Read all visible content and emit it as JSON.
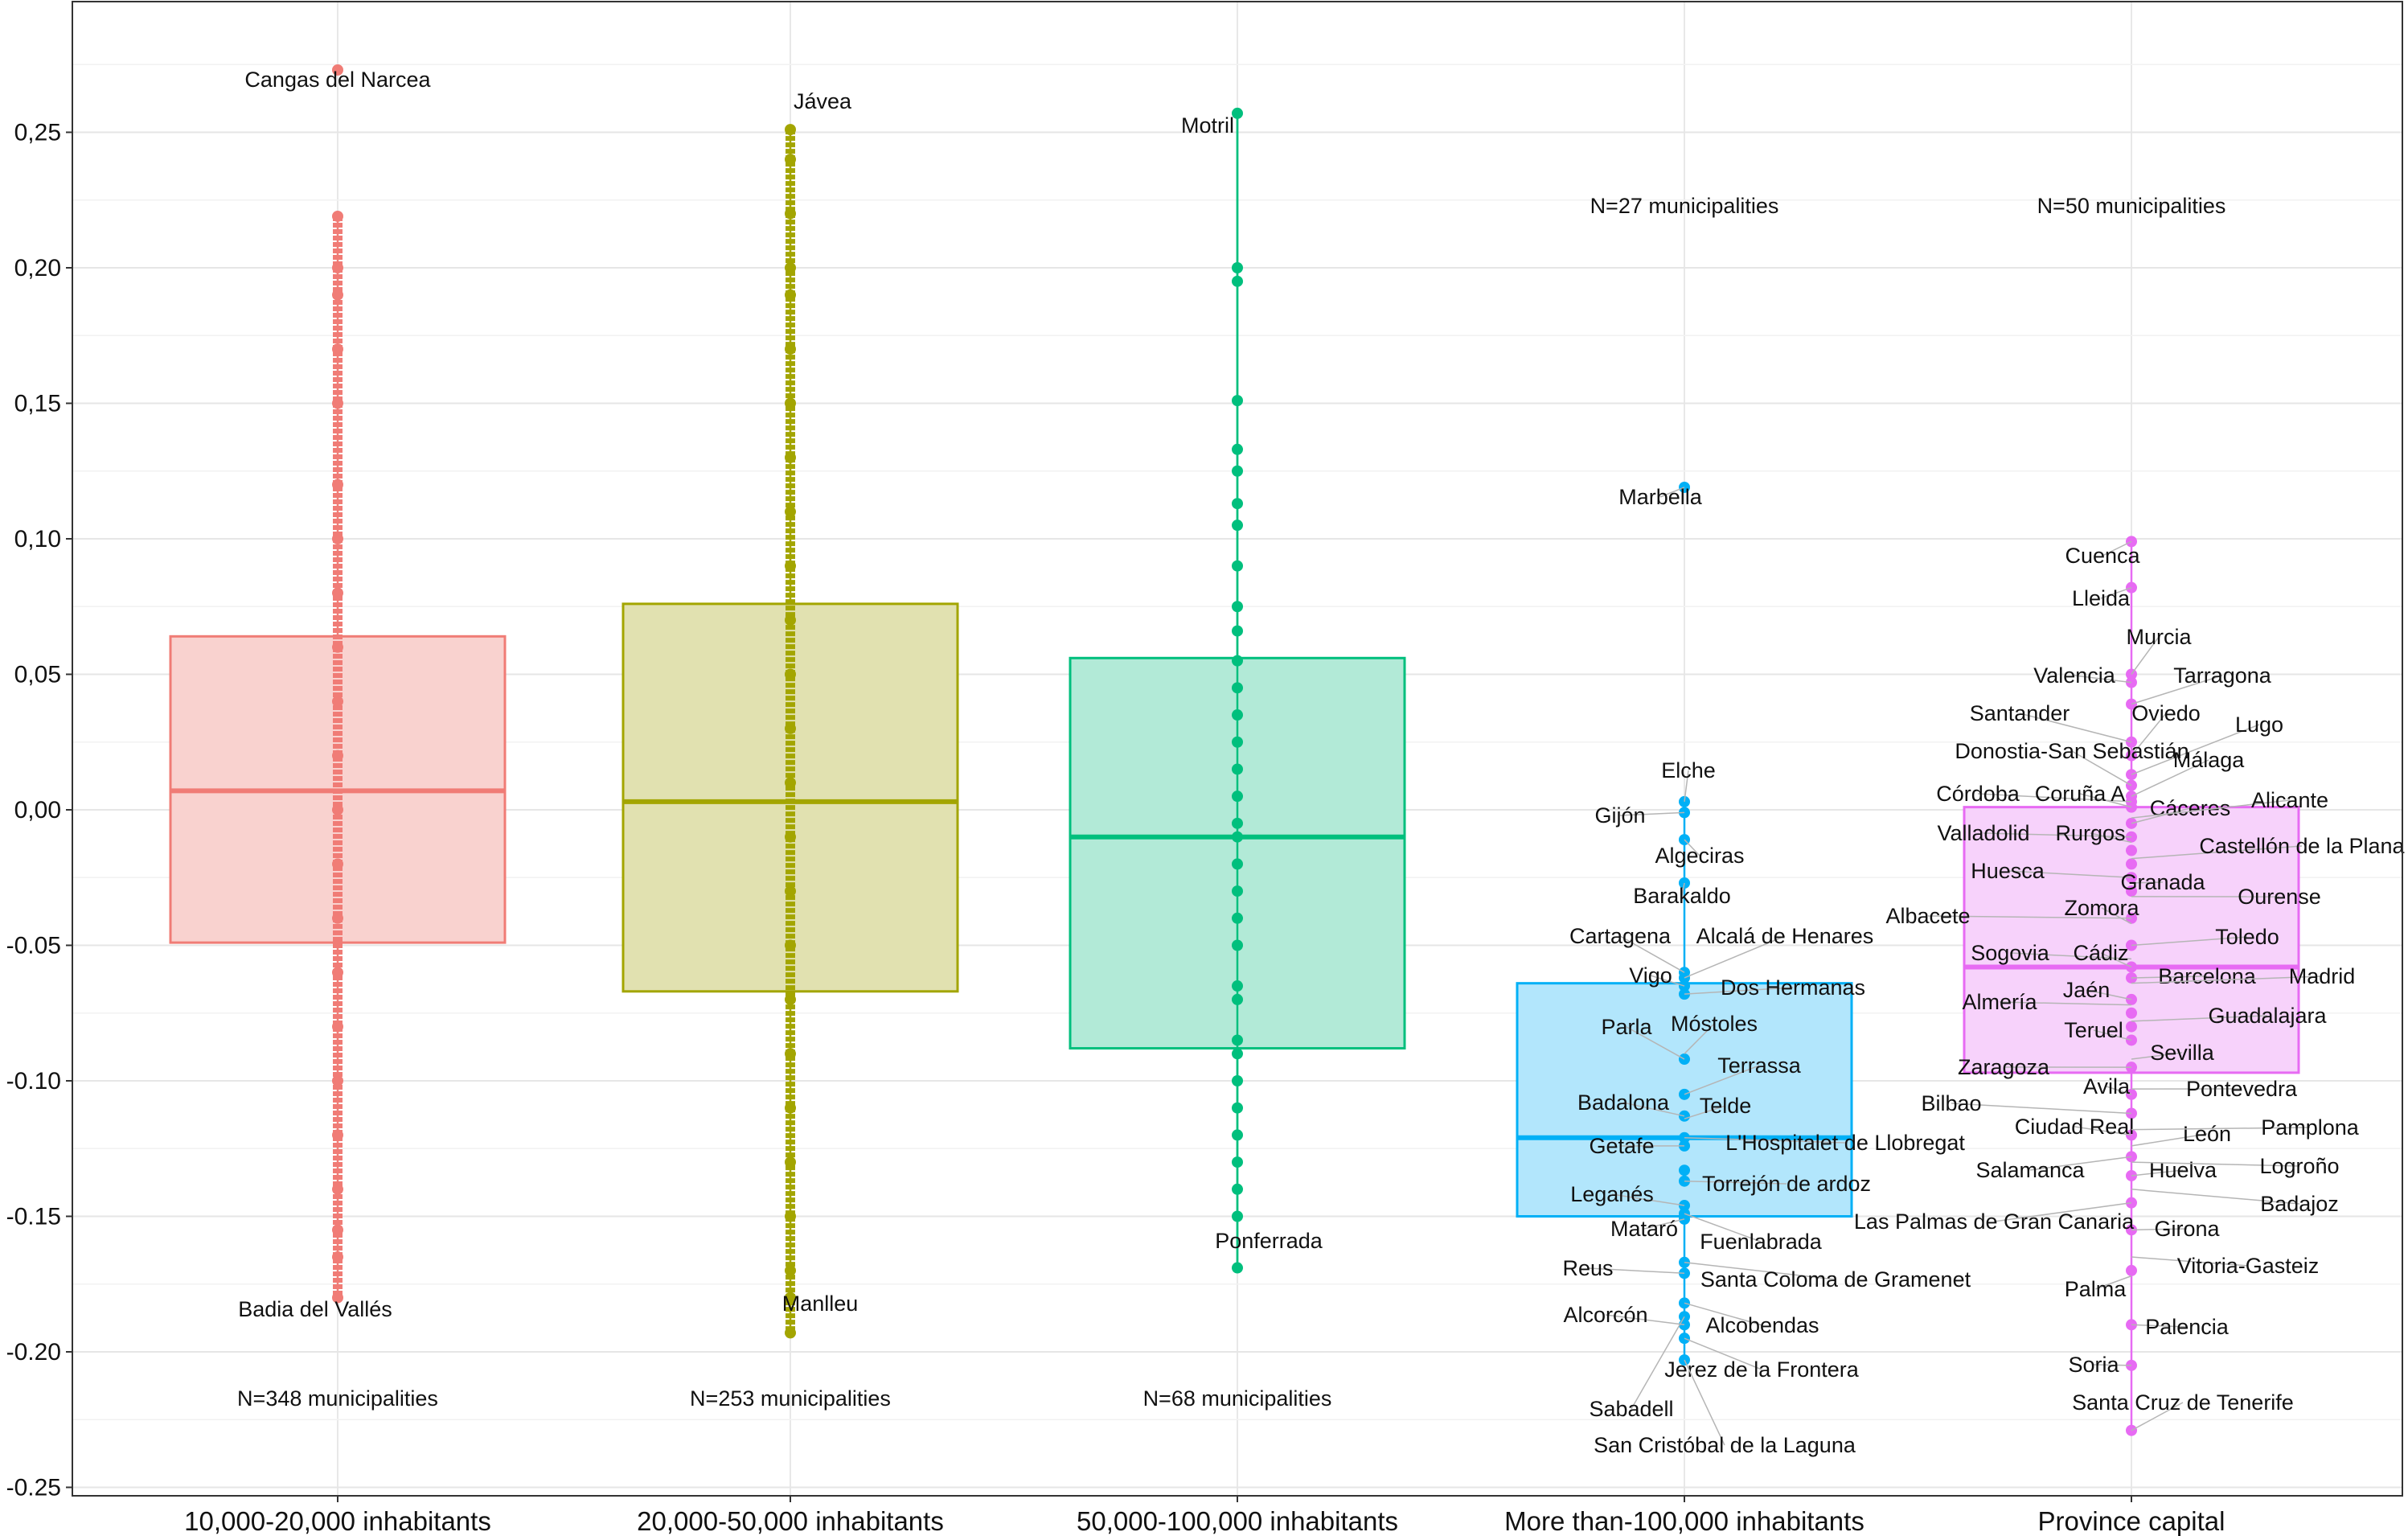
{
  "chart_data": {
    "type": "box",
    "title": "",
    "xlabel": "",
    "ylabel": "",
    "ylim": [
      -0.255,
      0.285
    ],
    "y_ticks": [
      "0,25",
      "0,20",
      "0,15",
      "0,10",
      "0,05",
      "0,00",
      "-0.05",
      "-0.10",
      "-0.15",
      "-0.20",
      "-0.25"
    ],
    "y_tick_values": [
      0.25,
      0.2,
      0.15,
      0.1,
      0.05,
      0.0,
      -0.05,
      -0.1,
      -0.15,
      -0.2,
      -0.25
    ],
    "grid": true,
    "legend": "none",
    "categories": [
      "10,000-20,000 inhabitants",
      "20,000-50,000 inhabitants",
      "50,000-100,000 inhabitants",
      "More than-100,000 inhabitants",
      "Province capital"
    ],
    "series": [
      {
        "color": "#f07c76",
        "fill": "#f9d2cf",
        "box": {
          "q1": -0.049,
          "median": 0.007,
          "q3": 0.064
        },
        "whisker": {
          "min": -0.18,
          "max": 0.219
        },
        "outliers": [
          0.273
        ],
        "points": [
          0.273,
          0.219,
          0.2,
          0.19,
          0.17,
          0.15,
          0.12,
          0.1,
          0.08,
          0.06,
          0.04,
          0.02,
          0.0,
          -0.02,
          -0.04,
          -0.06,
          -0.08,
          -0.1,
          -0.12,
          -0.14,
          -0.155,
          -0.165,
          -0.18
        ],
        "annotation": "N=348 municipalities",
        "labels": [
          {
            "text": "Cangas del Narcea",
            "value": 0.273
          },
          {
            "text": "Badia del Vallés",
            "value": -0.18
          }
        ]
      },
      {
        "color": "#a3a500",
        "fill": "#e1e1b0",
        "box": {
          "q1": -0.067,
          "median": 0.003,
          "q3": 0.076
        },
        "whisker": {
          "min": -0.193,
          "max": 0.251
        },
        "outliers": [],
        "points": [
          0.251,
          0.24,
          0.22,
          0.2,
          0.19,
          0.17,
          0.15,
          0.13,
          0.11,
          0.09,
          0.07,
          0.05,
          0.03,
          0.01,
          -0.01,
          -0.03,
          -0.05,
          -0.07,
          -0.09,
          -0.11,
          -0.13,
          -0.15,
          -0.17,
          -0.18,
          -0.193
        ],
        "annotation": "N=253 municipalities",
        "labels": [
          {
            "text": "Jávea",
            "value": 0.251
          },
          {
            "text": "Manlleu",
            "value": -0.193
          }
        ]
      },
      {
        "color": "#00bf7d",
        "fill": "#b2ead7",
        "box": {
          "q1": -0.088,
          "median": -0.01,
          "q3": 0.056
        },
        "whisker": {
          "min": -0.169,
          "max": 0.257
        },
        "outliers": [],
        "points": [
          0.257,
          0.2,
          0.195,
          0.151,
          0.133,
          0.125,
          0.113,
          0.105,
          0.09,
          0.075,
          0.066,
          0.055,
          0.045,
          0.035,
          0.025,
          0.015,
          0.005,
          -0.005,
          -0.01,
          -0.02,
          -0.03,
          -0.04,
          -0.05,
          -0.065,
          -0.07,
          -0.085,
          -0.09,
          -0.1,
          -0.11,
          -0.12,
          -0.13,
          -0.14,
          -0.15,
          -0.169
        ],
        "annotation": "N=68 municipalities",
        "labels": [
          {
            "text": "Motril",
            "value": 0.257
          },
          {
            "text": "Ponferrada",
            "value": -0.169
          }
        ]
      },
      {
        "color": "#00b0f6",
        "fill": "#b2e6fc",
        "box": {
          "q1": -0.15,
          "median": -0.121,
          "q3": -0.064
        },
        "whisker": {
          "min": -0.203,
          "max": 0.003
        },
        "outliers": [
          0.119
        ],
        "points": [
          0.119,
          0.003,
          -0.001,
          -0.011,
          -0.027,
          -0.06,
          -0.062,
          -0.065,
          -0.068,
          -0.092,
          -0.105,
          -0.113,
          -0.121,
          -0.124,
          -0.133,
          -0.137,
          -0.146,
          -0.149,
          -0.151,
          -0.167,
          -0.171,
          -0.182,
          -0.187,
          -0.19,
          -0.195,
          -0.203
        ],
        "annotation": "N=27 municipalities",
        "labels": [
          {
            "text": "Marbella",
            "value": 0.119
          },
          {
            "text": "Elche",
            "value": 0.003
          },
          {
            "text": "Gijón",
            "value": -0.001
          },
          {
            "text": "Algeciras",
            "value": -0.011
          },
          {
            "text": "Barakaldo",
            "value": -0.027
          },
          {
            "text": "Cartagena",
            "value": -0.06
          },
          {
            "text": "Alcalá de Henares",
            "value": -0.062
          },
          {
            "text": "Vigo",
            "value": -0.065
          },
          {
            "text": "Dos Hermanas",
            "value": -0.068
          },
          {
            "text": "Parla",
            "value": -0.092
          },
          {
            "text": "Móstoles",
            "value": -0.09
          },
          {
            "text": "Terrassa",
            "value": -0.105
          },
          {
            "text": "Badalona",
            "value": -0.113
          },
          {
            "text": "Telde",
            "value": -0.114
          },
          {
            "text": "Getafe",
            "value": -0.124
          },
          {
            "text": "L'Hospitalet de Llobregat",
            "value": -0.121
          },
          {
            "text": "Torrejón de ardoz",
            "value": -0.137
          },
          {
            "text": "Leganés",
            "value": -0.146
          },
          {
            "text": "Mataró",
            "value": -0.151
          },
          {
            "text": "Fuenlabrada",
            "value": -0.149
          },
          {
            "text": "Reus",
            "value": -0.171
          },
          {
            "text": "Santa Coloma de Gramenet",
            "value": -0.167
          },
          {
            "text": "Alcorcón",
            "value": -0.19
          },
          {
            "text": "Alcobendas",
            "value": -0.182
          },
          {
            "text": "Jerez de la Frontera",
            "value": -0.195
          },
          {
            "text": "Sabadell",
            "value": -0.187
          },
          {
            "text": "San Cristóbal de la Laguna",
            "value": -0.203
          }
        ]
      },
      {
        "color": "#e76bf3",
        "fill": "#f7d2fb",
        "box": {
          "q1": -0.097,
          "median": -0.058,
          "q3": 0.001
        },
        "whisker": {
          "min": -0.229,
          "max": 0.099
        },
        "outliers": [],
        "points": [
          0.099,
          0.082,
          0.05,
          0.047,
          0.039,
          0.025,
          0.02,
          0.013,
          0.009,
          0.005,
          0.003,
          0.001,
          -0.005,
          -0.01,
          -0.015,
          -0.02,
          -0.025,
          -0.03,
          -0.04,
          -0.05,
          -0.058,
          -0.062,
          -0.07,
          -0.075,
          -0.08,
          -0.085,
          -0.095,
          -0.105,
          -0.112,
          -0.12,
          -0.128,
          -0.135,
          -0.145,
          -0.155,
          -0.17,
          -0.19,
          -0.205,
          -0.229
        ],
        "annotation": "N=50 municipalities",
        "labels": [
          {
            "text": "Cuenca",
            "value": 0.099
          },
          {
            "text": "Lleida",
            "value": 0.082
          },
          {
            "text": "Murcia",
            "value": 0.05
          },
          {
            "text": "Valencia",
            "value": 0.047
          },
          {
            "text": "Tarragona",
            "value": 0.039
          },
          {
            "text": "Santander",
            "value": 0.025
          },
          {
            "text": "Oviedo",
            "value": 0.02
          },
          {
            "text": "Lugo",
            "value": 0.013
          },
          {
            "text": "Donostia-San Sebastián",
            "value": 0.009
          },
          {
            "text": "Málaga",
            "value": 0.005
          },
          {
            "text": "Córdoba",
            "value": 0.003
          },
          {
            "text": "Coruña A",
            "value": 0.001
          },
          {
            "text": "Cáceres",
            "value": -0.005
          },
          {
            "text": "Alicante",
            "value": -0.003
          },
          {
            "text": "Valladolid",
            "value": -0.01
          },
          {
            "text": "Rurgos",
            "value": -0.012
          },
          {
            "text": "Castellón de la Plana",
            "value": -0.018
          },
          {
            "text": "Huesca",
            "value": -0.025
          },
          {
            "text": "Granada",
            "value": -0.027
          },
          {
            "text": "Ourense",
            "value": -0.032
          },
          {
            "text": "Albacete",
            "value": -0.04
          },
          {
            "text": "Zomora",
            "value": -0.042
          },
          {
            "text": "Toledo",
            "value": -0.05
          },
          {
            "text": "Sogovia",
            "value": -0.055
          },
          {
            "text": "Cádiz",
            "value": -0.058
          },
          {
            "text": "Barcelona",
            "value": -0.062
          },
          {
            "text": "Madrid",
            "value": -0.064
          },
          {
            "text": "Almería",
            "value": -0.072
          },
          {
            "text": "Jaén",
            "value": -0.07
          },
          {
            "text": "Guadalajara",
            "value": -0.078
          },
          {
            "text": "Teruel",
            "value": -0.085
          },
          {
            "text": "Sevilla",
            "value": -0.092
          },
          {
            "text": "Zaragoza",
            "value": -0.095
          },
          {
            "text": "Avila",
            "value": -0.105
          },
          {
            "text": "Pontevedra",
            "value": -0.103
          },
          {
            "text": "Bilbao",
            "value": -0.112
          },
          {
            "text": "Ciudad Real",
            "value": -0.12
          },
          {
            "text": "León",
            "value": -0.124
          },
          {
            "text": "Pamplona",
            "value": -0.118
          },
          {
            "text": "Salamanca",
            "value": -0.128
          },
          {
            "text": "Huelva",
            "value": -0.135
          },
          {
            "text": "Logroño",
            "value": -0.13
          },
          {
            "text": "Las Palmas de Gran Canaria",
            "value": -0.145
          },
          {
            "text": "Badajoz",
            "value": -0.14
          },
          {
            "text": "Girona",
            "value": -0.155
          },
          {
            "text": "Vitoria-Gasteiz",
            "value": -0.165
          },
          {
            "text": "Palma",
            "value": -0.172
          },
          {
            "text": "Palencia",
            "value": -0.19
          },
          {
            "text": "Soria",
            "value": -0.205
          },
          {
            "text": "Santa Cruz de Tenerife",
            "value": -0.229
          }
        ]
      }
    ]
  }
}
